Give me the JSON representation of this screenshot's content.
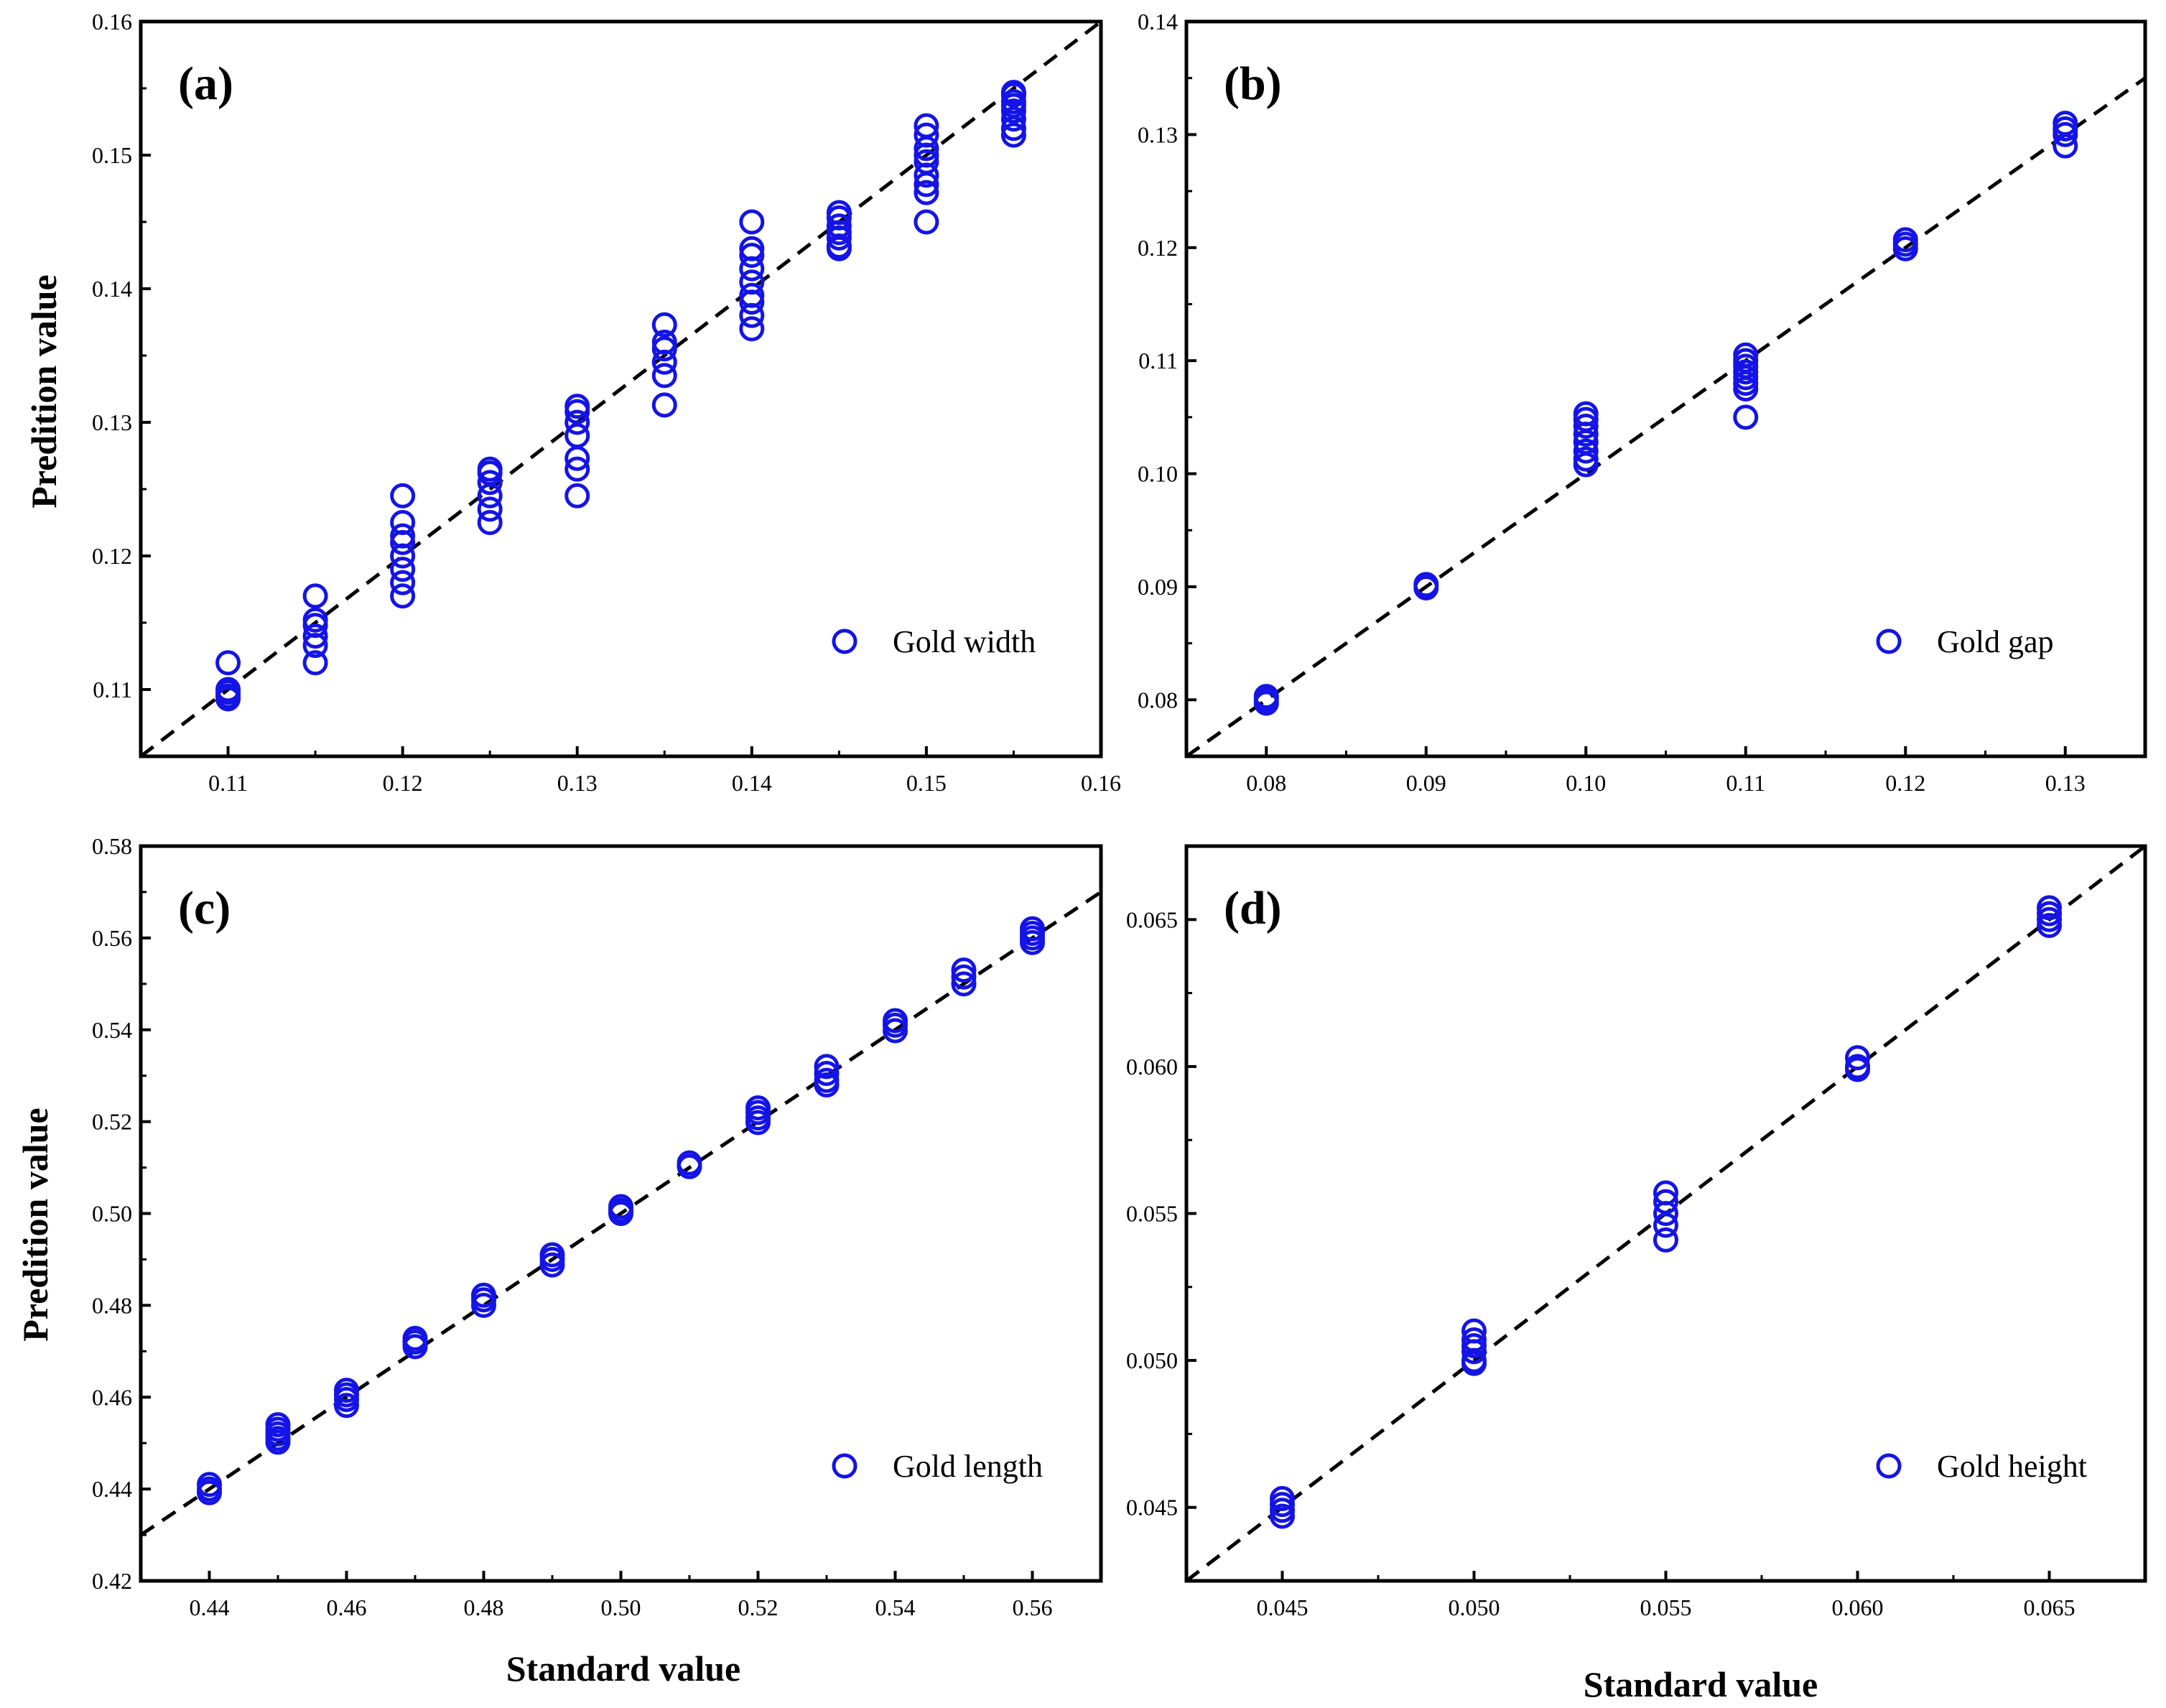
{
  "colors": {
    "marker": "#1414e6",
    "axes": "#000000",
    "reference_line": "#000000"
  },
  "figure": {
    "x_axis_title": "Standard value",
    "y_axis_title": "Predition value"
  },
  "chart_data": [
    {
      "type": "scatter",
      "panel_label": "(a)",
      "legend": "Gold width",
      "legend_position": "bottom-right",
      "xlim": [
        0.105,
        0.16
      ],
      "ylim": [
        0.105,
        0.16
      ],
      "xticks": [
        "0.11",
        "0.12",
        "0.13",
        "0.14",
        "0.15",
        "0.16"
      ],
      "yticks": [
        "0.11",
        "0.12",
        "0.13",
        "0.14",
        "0.15",
        "0.16"
      ],
      "reference_line": "y = x",
      "points": [
        [
          0.11,
          0.112
        ],
        [
          0.11,
          0.1095
        ],
        [
          0.11,
          0.1093
        ],
        [
          0.11,
          0.11
        ],
        [
          0.11,
          0.1098
        ],
        [
          0.115,
          0.117
        ],
        [
          0.115,
          0.1152
        ],
        [
          0.115,
          0.1148
        ],
        [
          0.115,
          0.114
        ],
        [
          0.115,
          0.1133
        ],
        [
          0.115,
          0.112
        ],
        [
          0.12,
          0.1245
        ],
        [
          0.12,
          0.1225
        ],
        [
          0.12,
          0.1215
        ],
        [
          0.12,
          0.121
        ],
        [
          0.12,
          0.12
        ],
        [
          0.12,
          0.119
        ],
        [
          0.12,
          0.118
        ],
        [
          0.12,
          0.117
        ],
        [
          0.125,
          0.1265
        ],
        [
          0.125,
          0.1262
        ],
        [
          0.125,
          0.1255
        ],
        [
          0.125,
          0.1245
        ],
        [
          0.125,
          0.1235
        ],
        [
          0.125,
          0.1225
        ],
        [
          0.13,
          0.1312
        ],
        [
          0.13,
          0.1308
        ],
        [
          0.13,
          0.13
        ],
        [
          0.13,
          0.129
        ],
        [
          0.13,
          0.1273
        ],
        [
          0.13,
          0.1265
        ],
        [
          0.13,
          0.1245
        ],
        [
          0.135,
          0.1373
        ],
        [
          0.135,
          0.136
        ],
        [
          0.135,
          0.1355
        ],
        [
          0.135,
          0.1345
        ],
        [
          0.135,
          0.1335
        ],
        [
          0.135,
          0.1313
        ],
        [
          0.14,
          0.145
        ],
        [
          0.14,
          0.143
        ],
        [
          0.14,
          0.1425
        ],
        [
          0.14,
          0.1415
        ],
        [
          0.14,
          0.1405
        ],
        [
          0.14,
          0.1395
        ],
        [
          0.14,
          0.139
        ],
        [
          0.14,
          0.138
        ],
        [
          0.14,
          0.137
        ],
        [
          0.145,
          0.1457
        ],
        [
          0.145,
          0.1453
        ],
        [
          0.145,
          0.1447
        ],
        [
          0.145,
          0.1442
        ],
        [
          0.145,
          0.1438
        ],
        [
          0.145,
          0.1432
        ],
        [
          0.145,
          0.143
        ],
        [
          0.15,
          0.1522
        ],
        [
          0.15,
          0.1515
        ],
        [
          0.15,
          0.1505
        ],
        [
          0.15,
          0.15
        ],
        [
          0.15,
          0.1495
        ],
        [
          0.15,
          0.1485
        ],
        [
          0.15,
          0.1478
        ],
        [
          0.15,
          0.1472
        ],
        [
          0.15,
          0.145
        ],
        [
          0.155,
          0.1547
        ],
        [
          0.155,
          0.1545
        ],
        [
          0.155,
          0.154
        ],
        [
          0.155,
          0.1537
        ],
        [
          0.155,
          0.1533
        ],
        [
          0.155,
          0.1527
        ],
        [
          0.155,
          0.152
        ],
        [
          0.155,
          0.1515
        ]
      ]
    },
    {
      "type": "scatter",
      "panel_label": "(b)",
      "legend": "Gold gap",
      "legend_position": "bottom-right",
      "xlim": [
        0.075,
        0.135
      ],
      "ylim": [
        0.075,
        0.14
      ],
      "xticks": [
        "0.08",
        "0.09",
        "0.10",
        "0.11",
        "0.12",
        "0.13"
      ],
      "yticks": [
        "0.08",
        "0.09",
        "0.10",
        "0.11",
        "0.12",
        "0.13",
        "0.14"
      ],
      "reference_line": "y = x",
      "points": [
        [
          0.08,
          0.0803
        ],
        [
          0.08,
          0.08
        ],
        [
          0.08,
          0.0797
        ],
        [
          0.09,
          0.0902
        ],
        [
          0.09,
          0.0899
        ],
        [
          0.1,
          0.1053
        ],
        [
          0.1,
          0.1048
        ],
        [
          0.1,
          0.1042
        ],
        [
          0.1,
          0.1035
        ],
        [
          0.1,
          0.1028
        ],
        [
          0.1,
          0.102
        ],
        [
          0.1,
          0.1013
        ],
        [
          0.1,
          0.1008
        ],
        [
          0.11,
          0.1105
        ],
        [
          0.11,
          0.11
        ],
        [
          0.11,
          0.1095
        ],
        [
          0.11,
          0.109
        ],
        [
          0.11,
          0.1085
        ],
        [
          0.11,
          0.108
        ],
        [
          0.11,
          0.1075
        ],
        [
          0.11,
          0.105
        ],
        [
          0.12,
          0.1207
        ],
        [
          0.12,
          0.1203
        ],
        [
          0.12,
          0.1199
        ],
        [
          0.13,
          0.131
        ],
        [
          0.13,
          0.1305
        ],
        [
          0.13,
          0.13
        ],
        [
          0.13,
          0.129
        ]
      ]
    },
    {
      "type": "scatter",
      "panel_label": "(c)",
      "legend": "Gold length",
      "legend_position": "bottom-right",
      "xlim": [
        0.43,
        0.57
      ],
      "ylim": [
        0.42,
        0.58
      ],
      "xticks": [
        "0.44",
        "0.46",
        "0.48",
        "0.50",
        "0.52",
        "0.54",
        "0.56"
      ],
      "yticks": [
        "0.42",
        "0.44",
        "0.46",
        "0.48",
        "0.50",
        "0.52",
        "0.54",
        "0.56",
        "0.58"
      ],
      "reference_line": "y = x",
      "points": [
        [
          0.44,
          0.441
        ],
        [
          0.44,
          0.44
        ],
        [
          0.44,
          0.4392
        ],
        [
          0.45,
          0.454
        ],
        [
          0.45,
          0.453
        ],
        [
          0.45,
          0.452
        ],
        [
          0.45,
          0.451
        ],
        [
          0.45,
          0.4502
        ],
        [
          0.46,
          0.4615
        ],
        [
          0.46,
          0.4605
        ],
        [
          0.46,
          0.4595
        ],
        [
          0.46,
          0.4582
        ],
        [
          0.47,
          0.4728
        ],
        [
          0.47,
          0.472
        ],
        [
          0.47,
          0.471
        ],
        [
          0.48,
          0.4822
        ],
        [
          0.48,
          0.4812
        ],
        [
          0.48,
          0.48
        ],
        [
          0.49,
          0.491
        ],
        [
          0.49,
          0.49
        ],
        [
          0.49,
          0.4888
        ],
        [
          0.5,
          0.5015
        ],
        [
          0.5,
          0.5007
        ],
        [
          0.5,
          0.5
        ],
        [
          0.51,
          0.511
        ],
        [
          0.51,
          0.5102
        ],
        [
          0.52,
          0.523
        ],
        [
          0.52,
          0.522
        ],
        [
          0.52,
          0.5208
        ],
        [
          0.52,
          0.5198
        ],
        [
          0.53,
          0.532
        ],
        [
          0.53,
          0.5305
        ],
        [
          0.53,
          0.529
        ],
        [
          0.53,
          0.528
        ],
        [
          0.54,
          0.542
        ],
        [
          0.54,
          0.541
        ],
        [
          0.54,
          0.5398
        ],
        [
          0.55,
          0.553
        ],
        [
          0.55,
          0.5515
        ],
        [
          0.55,
          0.55
        ],
        [
          0.56,
          0.562
        ],
        [
          0.56,
          0.561
        ],
        [
          0.56,
          0.56
        ],
        [
          0.56,
          0.559
        ]
      ]
    },
    {
      "type": "scatter",
      "panel_label": "(d)",
      "legend": "Gold height",
      "legend_position": "bottom-right",
      "xlim": [
        0.0425,
        0.0675
      ],
      "ylim": [
        0.0425,
        0.0675
      ],
      "xticks": [
        "0.045",
        "0.050",
        "0.055",
        "0.060",
        "0.065"
      ],
      "yticks": [
        "0.045",
        "0.050",
        "0.055",
        "0.060",
        "0.065"
      ],
      "reference_line": "y = x",
      "points": [
        [
          0.045,
          0.0453
        ],
        [
          0.045,
          0.0451
        ],
        [
          0.045,
          0.0449
        ],
        [
          0.045,
          0.0447
        ],
        [
          0.05,
          0.051
        ],
        [
          0.05,
          0.0507
        ],
        [
          0.05,
          0.0505
        ],
        [
          0.05,
          0.0503
        ],
        [
          0.05,
          0.05
        ],
        [
          0.05,
          0.0499
        ],
        [
          0.055,
          0.0557
        ],
        [
          0.055,
          0.0554
        ],
        [
          0.055,
          0.055
        ],
        [
          0.055,
          0.0546
        ],
        [
          0.055,
          0.0541
        ],
        [
          0.06,
          0.0603
        ],
        [
          0.06,
          0.06
        ],
        [
          0.06,
          0.0599
        ],
        [
          0.065,
          0.0654
        ],
        [
          0.065,
          0.0652
        ],
        [
          0.065,
          0.065
        ],
        [
          0.065,
          0.0648
        ]
      ]
    }
  ]
}
